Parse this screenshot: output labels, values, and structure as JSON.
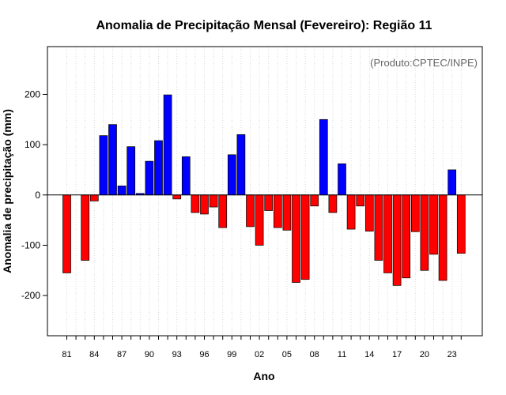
{
  "chart_data": {
    "type": "bar",
    "title": "Anomalia de Precipitação Mensal (Fevereiro): Região 11",
    "xlabel": "Ano",
    "ylabel": "Anomalia de precipitação (mm)",
    "annotation": "(Produto:CPTEC/INPE)",
    "ylim": [
      -280,
      295
    ],
    "yticks": [
      -200,
      -100,
      0,
      100,
      200
    ],
    "ytick_labels": [
      "-200",
      "-100",
      "0",
      "100",
      "200"
    ],
    "xtick_labels": [
      "81",
      "84",
      "87",
      "90",
      "93",
      "96",
      "99",
      "02",
      "05",
      "08",
      "11",
      "14",
      "17",
      "20",
      "23"
    ],
    "years": [
      1981,
      1982,
      1983,
      1984,
      1985,
      1986,
      1987,
      1988,
      1989,
      1990,
      1991,
      1992,
      1993,
      1994,
      1995,
      1996,
      1997,
      1998,
      1999,
      2000,
      2001,
      2002,
      2003,
      2004,
      2005,
      2006,
      2007,
      2008,
      2009,
      2010,
      2011,
      2012,
      2013,
      2014,
      2015,
      2016,
      2017,
      2018,
      2019,
      2020,
      2021,
      2022,
      2023,
      2024
    ],
    "values": [
      -155,
      0,
      -130,
      -12,
      118,
      140,
      18,
      96,
      3,
      67,
      108,
      199,
      -8,
      76,
      -35,
      -38,
      -24,
      -65,
      80,
      120,
      -63,
      -100,
      -31,
      -65,
      -70,
      -174,
      -168,
      -22,
      150,
      -35,
      62,
      -68,
      -22,
      -72,
      -130,
      -155,
      -180,
      -165,
      -73,
      -150,
      -118,
      -170,
      50,
      -116
    ],
    "positive_color": "#0000ff",
    "negative_color": "#ff0000",
    "grid": "vertical dotted"
  }
}
